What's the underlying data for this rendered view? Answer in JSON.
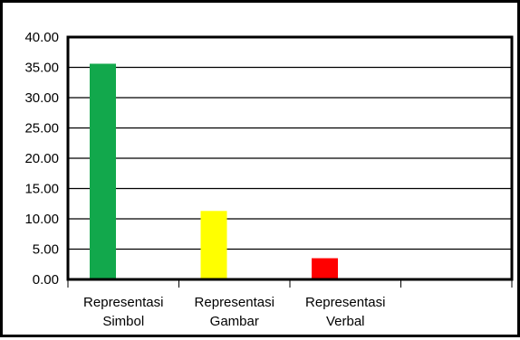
{
  "chart_data": {
    "type": "bar",
    "categories": [
      [
        "Representasi",
        "Simbol"
      ],
      [
        "Representasi",
        "Gambar"
      ],
      [
        "Representasi",
        "Verbal"
      ],
      [
        "",
        ""
      ]
    ],
    "values": [
      35.6,
      11.3,
      3.5,
      null
    ],
    "colors": [
      "#12A84C",
      "#FFFF00",
      "#FF0000"
    ],
    "ylim": [
      0,
      40
    ],
    "yticks": [
      "0.00",
      "5.00",
      "10.00",
      "15.00",
      "20.00",
      "25.00",
      "30.00",
      "35.00",
      "40.00"
    ],
    "grid": true,
    "title": "",
    "xlabel": "",
    "ylabel": ""
  }
}
